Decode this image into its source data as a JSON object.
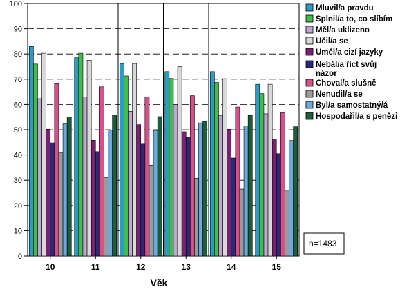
{
  "chart_data": {
    "type": "bar",
    "title": "",
    "xlabel": "Věk",
    "ylabel": "",
    "ylim": [
      0,
      100
    ],
    "yticks": [
      0,
      10,
      20,
      30,
      40,
      50,
      60,
      70,
      80,
      90,
      100
    ],
    "grid": "horizontal dashed",
    "legend_position": "right",
    "note": "n=1483",
    "categories": [
      "10",
      "11",
      "12",
      "13",
      "14",
      "15"
    ],
    "series": [
      {
        "name": "Mluvil/a pravdu",
        "color": "#2b9cc6",
        "values": [
          83.0,
          78.5,
          76.2,
          73.0,
          73.0,
          68.0
        ]
      },
      {
        "name": "Splnil/a to, co slíbím",
        "color": "#3fbf4a",
        "values": [
          76.0,
          80.3,
          71.3,
          70.3,
          68.7,
          64.3
        ]
      },
      {
        "name": "Měl/a uklizeno",
        "color": "#c0a7d1",
        "values": [
          62.3,
          63.0,
          57.3,
          60.0,
          55.7,
          56.3
        ]
      },
      {
        "name": "Učil/a se",
        "color": "#d9d9d9",
        "values": [
          80.3,
          77.5,
          76.2,
          75.0,
          70.2,
          68.0
        ]
      },
      {
        "name": "Uměl/a cizí jazyky",
        "color": "#7a2270",
        "values": [
          50.2,
          45.8,
          52.0,
          49.2,
          50.2,
          46.3
        ]
      },
      {
        "name": "Nebál/a říct svůj názor",
        "color": "#2a2a78",
        "values": [
          44.8,
          41.3,
          44.3,
          47.0,
          38.8,
          40.5
        ]
      },
      {
        "name": "Choval/a slušně",
        "color": "#d94f8a",
        "values": [
          68.2,
          67.0,
          63.0,
          63.5,
          59.0,
          56.7
        ]
      },
      {
        "name": "Nenudil/a se",
        "color": "#9b9b9b",
        "values": [
          40.8,
          31.0,
          36.0,
          30.8,
          26.5,
          26.0
        ]
      },
      {
        "name": "Byl/a samostatný/á",
        "color": "#6fa8dc",
        "values": [
          52.3,
          49.8,
          49.7,
          52.7,
          51.5,
          45.7
        ]
      },
      {
        "name": "Hospodařil/a s penězi",
        "color": "#1b5e3b",
        "values": [
          55.0,
          55.8,
          55.2,
          53.3,
          55.7,
          51.2
        ]
      }
    ]
  }
}
